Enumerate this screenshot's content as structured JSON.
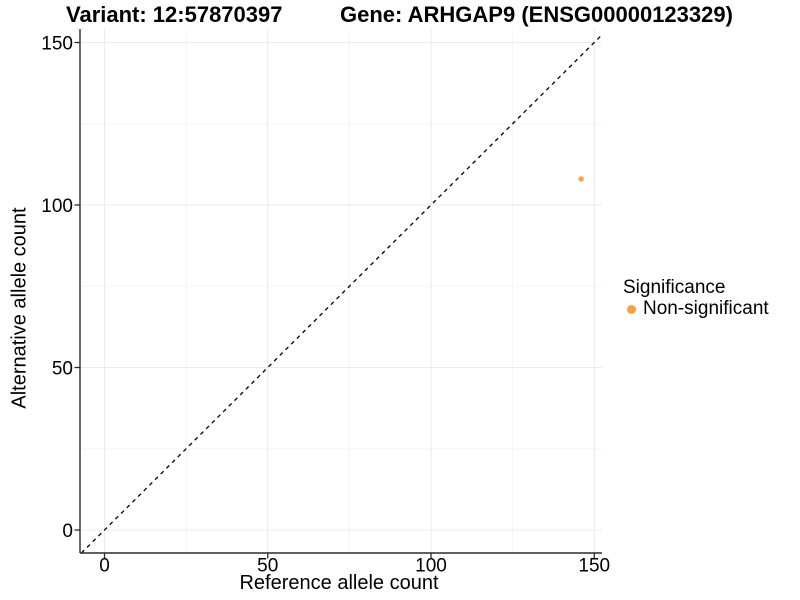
{
  "chart_data": {
    "type": "scatter",
    "titles": [
      "Variant: 12:57870397",
      "Gene: ARHGAP9 (ENSG00000123329)"
    ],
    "xlabel": "Reference allele count",
    "ylabel": "Alternative allele count",
    "x_ticks": [
      0,
      50,
      100,
      150
    ],
    "y_ticks": [
      0,
      50,
      100,
      150
    ],
    "x_minor_ticks": [
      25,
      75,
      125
    ],
    "y_minor_ticks": [
      25,
      75,
      125
    ],
    "xlim": [
      -7.5,
      152.5
    ],
    "ylim": [
      -7.1,
      154.2
    ],
    "grid": "major+minor",
    "reference_line": {
      "type": "identity y=x",
      "style": "dashed",
      "color": "#000000"
    },
    "series": [
      {
        "name": "Non-significant",
        "color": "#F9A23C",
        "points": [
          {
            "x": 146,
            "y": 108
          }
        ]
      }
    ],
    "legend": {
      "title": "Significance",
      "position": "right",
      "entries": [
        {
          "label": "Non-significant",
          "color": "#F9A23C",
          "marker": "circle"
        }
      ]
    }
  },
  "colors": {
    "background": "#FFFFFF",
    "grid_major": "#EBEBEB",
    "grid_minor": "#F5F5F5",
    "axis_line": "#2B2B2B",
    "tick_mark": "#2B2B2B",
    "text": "#000000",
    "point": "#F9A23C"
  }
}
